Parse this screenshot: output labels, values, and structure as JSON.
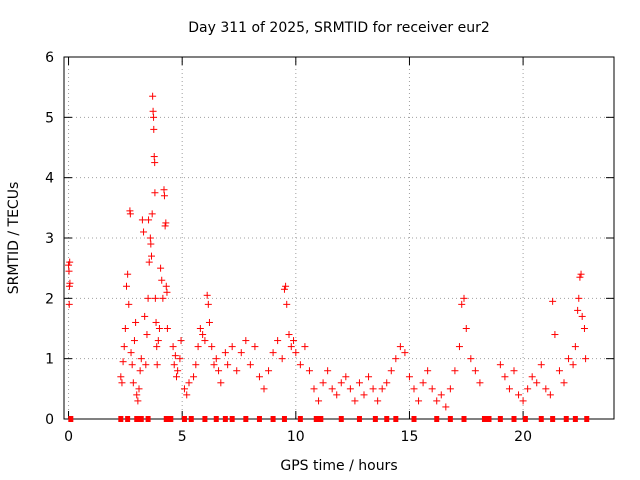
{
  "chart_data": {
    "type": "scatter",
    "title": "Day 311 of 2025, SRMTID for receiver eur2",
    "xlabel": "GPS time / hours",
    "ylabel": "SRMTID / TECUs",
    "xlim": [
      -0.2,
      24.0
    ],
    "ylim": [
      0,
      6
    ],
    "x_ticks": [
      0,
      5,
      10,
      15,
      20
    ],
    "x_tick_labels": [
      "0",
      "5",
      "10",
      "15",
      "20"
    ],
    "y_ticks": [
      0,
      1,
      2,
      3,
      4,
      5,
      6
    ],
    "y_tick_labels": [
      "0",
      "1",
      "2",
      "3",
      "4",
      "5",
      "6"
    ],
    "grid": true,
    "marker": "+",
    "color": "#ff0000",
    "series": [
      {
        "name": "SRMTID",
        "points": [
          [
            0.0,
            2.55
          ],
          [
            0.02,
            2.45
          ],
          [
            0.04,
            2.2
          ],
          [
            0.06,
            2.25
          ],
          [
            0.03,
            1.9
          ],
          [
            0.05,
            2.6
          ],
          [
            2.3,
            0.7
          ],
          [
            2.35,
            0.6
          ],
          [
            2.4,
            0.95
          ],
          [
            2.45,
            1.2
          ],
          [
            2.5,
            1.5
          ],
          [
            2.55,
            2.2
          ],
          [
            2.6,
            2.4
          ],
          [
            2.65,
            1.9
          ],
          [
            2.7,
            3.45
          ],
          [
            2.72,
            3.4
          ],
          [
            2.75,
            1.1
          ],
          [
            2.8,
            0.9
          ],
          [
            2.85,
            0.6
          ],
          [
            2.9,
            1.3
          ],
          [
            2.95,
            1.6
          ],
          [
            3.0,
            0.4
          ],
          [
            3.05,
            0.3
          ],
          [
            3.1,
            0.5
          ],
          [
            3.15,
            0.8
          ],
          [
            3.2,
            1.0
          ],
          [
            3.25,
            3.3
          ],
          [
            3.3,
            3.1
          ],
          [
            3.35,
            1.7
          ],
          [
            3.4,
            0.9
          ],
          [
            3.45,
            1.4
          ],
          [
            3.5,
            2.0
          ],
          [
            3.52,
            3.3
          ],
          [
            3.55,
            2.6
          ],
          [
            3.6,
            3.0
          ],
          [
            3.62,
            2.9
          ],
          [
            3.65,
            2.7
          ],
          [
            3.68,
            3.4
          ],
          [
            3.7,
            5.35
          ],
          [
            3.72,
            5.1
          ],
          [
            3.74,
            5.0
          ],
          [
            3.75,
            4.8
          ],
          [
            3.77,
            4.35
          ],
          [
            3.79,
            4.25
          ],
          [
            3.8,
            3.75
          ],
          [
            3.82,
            2.0
          ],
          [
            3.85,
            1.6
          ],
          [
            3.88,
            1.2
          ],
          [
            3.9,
            0.9
          ],
          [
            3.95,
            1.3
          ],
          [
            4.0,
            1.5
          ],
          [
            4.05,
            2.5
          ],
          [
            4.1,
            2.3
          ],
          [
            4.15,
            2.0
          ],
          [
            4.2,
            3.8
          ],
          [
            4.22,
            3.7
          ],
          [
            4.25,
            3.2
          ],
          [
            4.28,
            3.25
          ],
          [
            4.3,
            2.2
          ],
          [
            4.33,
            2.1
          ],
          [
            4.35,
            1.5
          ],
          [
            4.6,
            1.2
          ],
          [
            4.65,
            0.9
          ],
          [
            4.7,
            1.05
          ],
          [
            4.75,
            0.7
          ],
          [
            4.8,
            0.8
          ],
          [
            4.9,
            1.0
          ],
          [
            4.95,
            1.3
          ],
          [
            5.1,
            0.5
          ],
          [
            5.2,
            0.4
          ],
          [
            5.3,
            0.6
          ],
          [
            5.5,
            0.7
          ],
          [
            5.6,
            0.9
          ],
          [
            5.7,
            1.2
          ],
          [
            5.8,
            1.5
          ],
          [
            5.9,
            1.4
          ],
          [
            6.0,
            1.3
          ],
          [
            6.1,
            2.05
          ],
          [
            6.15,
            1.9
          ],
          [
            6.2,
            1.6
          ],
          [
            6.3,
            1.2
          ],
          [
            6.4,
            0.9
          ],
          [
            6.5,
            1.0
          ],
          [
            6.6,
            0.8
          ],
          [
            6.7,
            0.6
          ],
          [
            6.9,
            1.1
          ],
          [
            7.0,
            0.9
          ],
          [
            7.2,
            1.2
          ],
          [
            7.4,
            0.8
          ],
          [
            7.6,
            1.1
          ],
          [
            7.8,
            1.3
          ],
          [
            8.0,
            0.9
          ],
          [
            8.2,
            1.2
          ],
          [
            8.4,
            0.7
          ],
          [
            8.6,
            0.5
          ],
          [
            8.8,
            0.8
          ],
          [
            9.0,
            1.1
          ],
          [
            9.2,
            1.3
          ],
          [
            9.4,
            1.0
          ],
          [
            9.5,
            2.15
          ],
          [
            9.55,
            2.2
          ],
          [
            9.6,
            1.9
          ],
          [
            9.7,
            1.4
          ],
          [
            9.8,
            1.2
          ],
          [
            9.9,
            1.3
          ],
          [
            10.0,
            1.1
          ],
          [
            10.2,
            0.9
          ],
          [
            10.4,
            1.2
          ],
          [
            10.6,
            0.8
          ],
          [
            10.8,
            0.5
          ],
          [
            11.0,
            0.3
          ],
          [
            11.2,
            0.6
          ],
          [
            11.4,
            0.8
          ],
          [
            11.6,
            0.5
          ],
          [
            11.8,
            0.4
          ],
          [
            12.0,
            0.6
          ],
          [
            12.2,
            0.7
          ],
          [
            12.4,
            0.5
          ],
          [
            12.6,
            0.3
          ],
          [
            12.8,
            0.6
          ],
          [
            13.0,
            0.4
          ],
          [
            13.2,
            0.7
          ],
          [
            13.4,
            0.5
          ],
          [
            13.6,
            0.3
          ],
          [
            13.8,
            0.5
          ],
          [
            14.0,
            0.6
          ],
          [
            14.2,
            0.8
          ],
          [
            14.4,
            1.0
          ],
          [
            14.6,
            1.2
          ],
          [
            14.8,
            1.1
          ],
          [
            15.0,
            0.7
          ],
          [
            15.2,
            0.5
          ],
          [
            15.4,
            0.3
          ],
          [
            15.6,
            0.6
          ],
          [
            15.8,
            0.8
          ],
          [
            16.0,
            0.5
          ],
          [
            16.2,
            0.3
          ],
          [
            16.4,
            0.4
          ],
          [
            16.6,
            0.2
          ],
          [
            16.8,
            0.5
          ],
          [
            17.0,
            0.8
          ],
          [
            17.2,
            1.2
          ],
          [
            17.3,
            1.9
          ],
          [
            17.4,
            2.0
          ],
          [
            17.5,
            1.5
          ],
          [
            17.7,
            1.0
          ],
          [
            17.9,
            0.8
          ],
          [
            18.1,
            0.6
          ],
          [
            19.0,
            0.9
          ],
          [
            19.2,
            0.7
          ],
          [
            19.4,
            0.5
          ],
          [
            19.6,
            0.8
          ],
          [
            19.8,
            0.4
          ],
          [
            20.0,
            0.3
          ],
          [
            20.2,
            0.5
          ],
          [
            20.4,
            0.7
          ],
          [
            20.6,
            0.6
          ],
          [
            20.8,
            0.9
          ],
          [
            21.0,
            0.5
          ],
          [
            21.2,
            0.4
          ],
          [
            21.3,
            1.95
          ],
          [
            21.4,
            1.4
          ],
          [
            21.6,
            0.8
          ],
          [
            21.8,
            0.6
          ],
          [
            22.0,
            1.0
          ],
          [
            22.2,
            0.9
          ],
          [
            22.3,
            1.2
          ],
          [
            22.4,
            1.8
          ],
          [
            22.45,
            2.0
          ],
          [
            22.5,
            2.35
          ],
          [
            22.55,
            2.4
          ],
          [
            22.6,
            1.7
          ],
          [
            22.7,
            1.5
          ],
          [
            22.75,
            1.0
          ]
        ]
      }
    ],
    "baseline_markers": {
      "marker": "square",
      "y": 0,
      "x": [
        0.1,
        2.3,
        2.6,
        3.0,
        3.2,
        3.5,
        4.3,
        4.5,
        5.1,
        5.4,
        6.0,
        6.5,
        6.9,
        7.2,
        7.8,
        8.4,
        9.0,
        9.5,
        10.2,
        10.9,
        11.1,
        12.0,
        12.8,
        13.5,
        14.0,
        14.4,
        15.2,
        16.2,
        16.8,
        17.4,
        18.3,
        18.5,
        19.0,
        19.6,
        20.1,
        20.8,
        21.3,
        21.9,
        22.3,
        22.8
      ]
    }
  }
}
